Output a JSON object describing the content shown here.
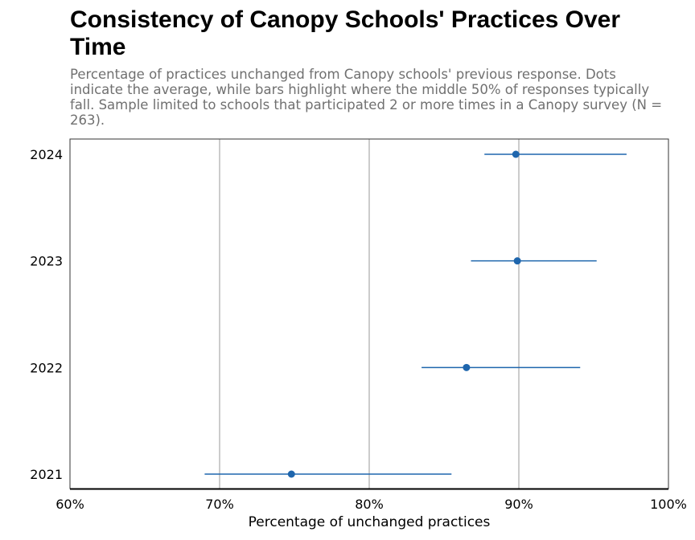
{
  "chart_data": {
    "type": "dot-range",
    "title": "Consistency of Canopy Schools' Practices Over Time",
    "subtitle": "Percentage of practices unchanged from Canopy schools' previous response. Dots indicate the average, while bars highlight where the middle 50% of responses typically fall. Sample limited to schools that participated 2 or more times in a Canopy survey (N = 263).",
    "xlabel": "Percentage of unchanged practices",
    "ylabel": "",
    "xlim": [
      60,
      100
    ],
    "xticks": [
      60,
      70,
      80,
      90,
      100
    ],
    "xtick_labels": [
      "60%",
      "70%",
      "80%",
      "90%",
      "100%"
    ],
    "categories": [
      "2024",
      "2023",
      "2022",
      "2021"
    ],
    "points": [
      {
        "year": "2024",
        "mean": 89.8,
        "q1": 87.7,
        "q3": 97.2
      },
      {
        "year": "2023",
        "mean": 89.9,
        "q1": 86.8,
        "q3": 95.2
      },
      {
        "year": "2022",
        "mean": 86.5,
        "q1": 83.5,
        "q3": 94.1
      },
      {
        "year": "2021",
        "mean": 74.8,
        "q1": 69.0,
        "q3": 85.5
      }
    ],
    "grid": "vertical",
    "colors": {
      "series": "#1f66ad",
      "grid": "#bbbbbb",
      "frame": "#333333"
    }
  }
}
